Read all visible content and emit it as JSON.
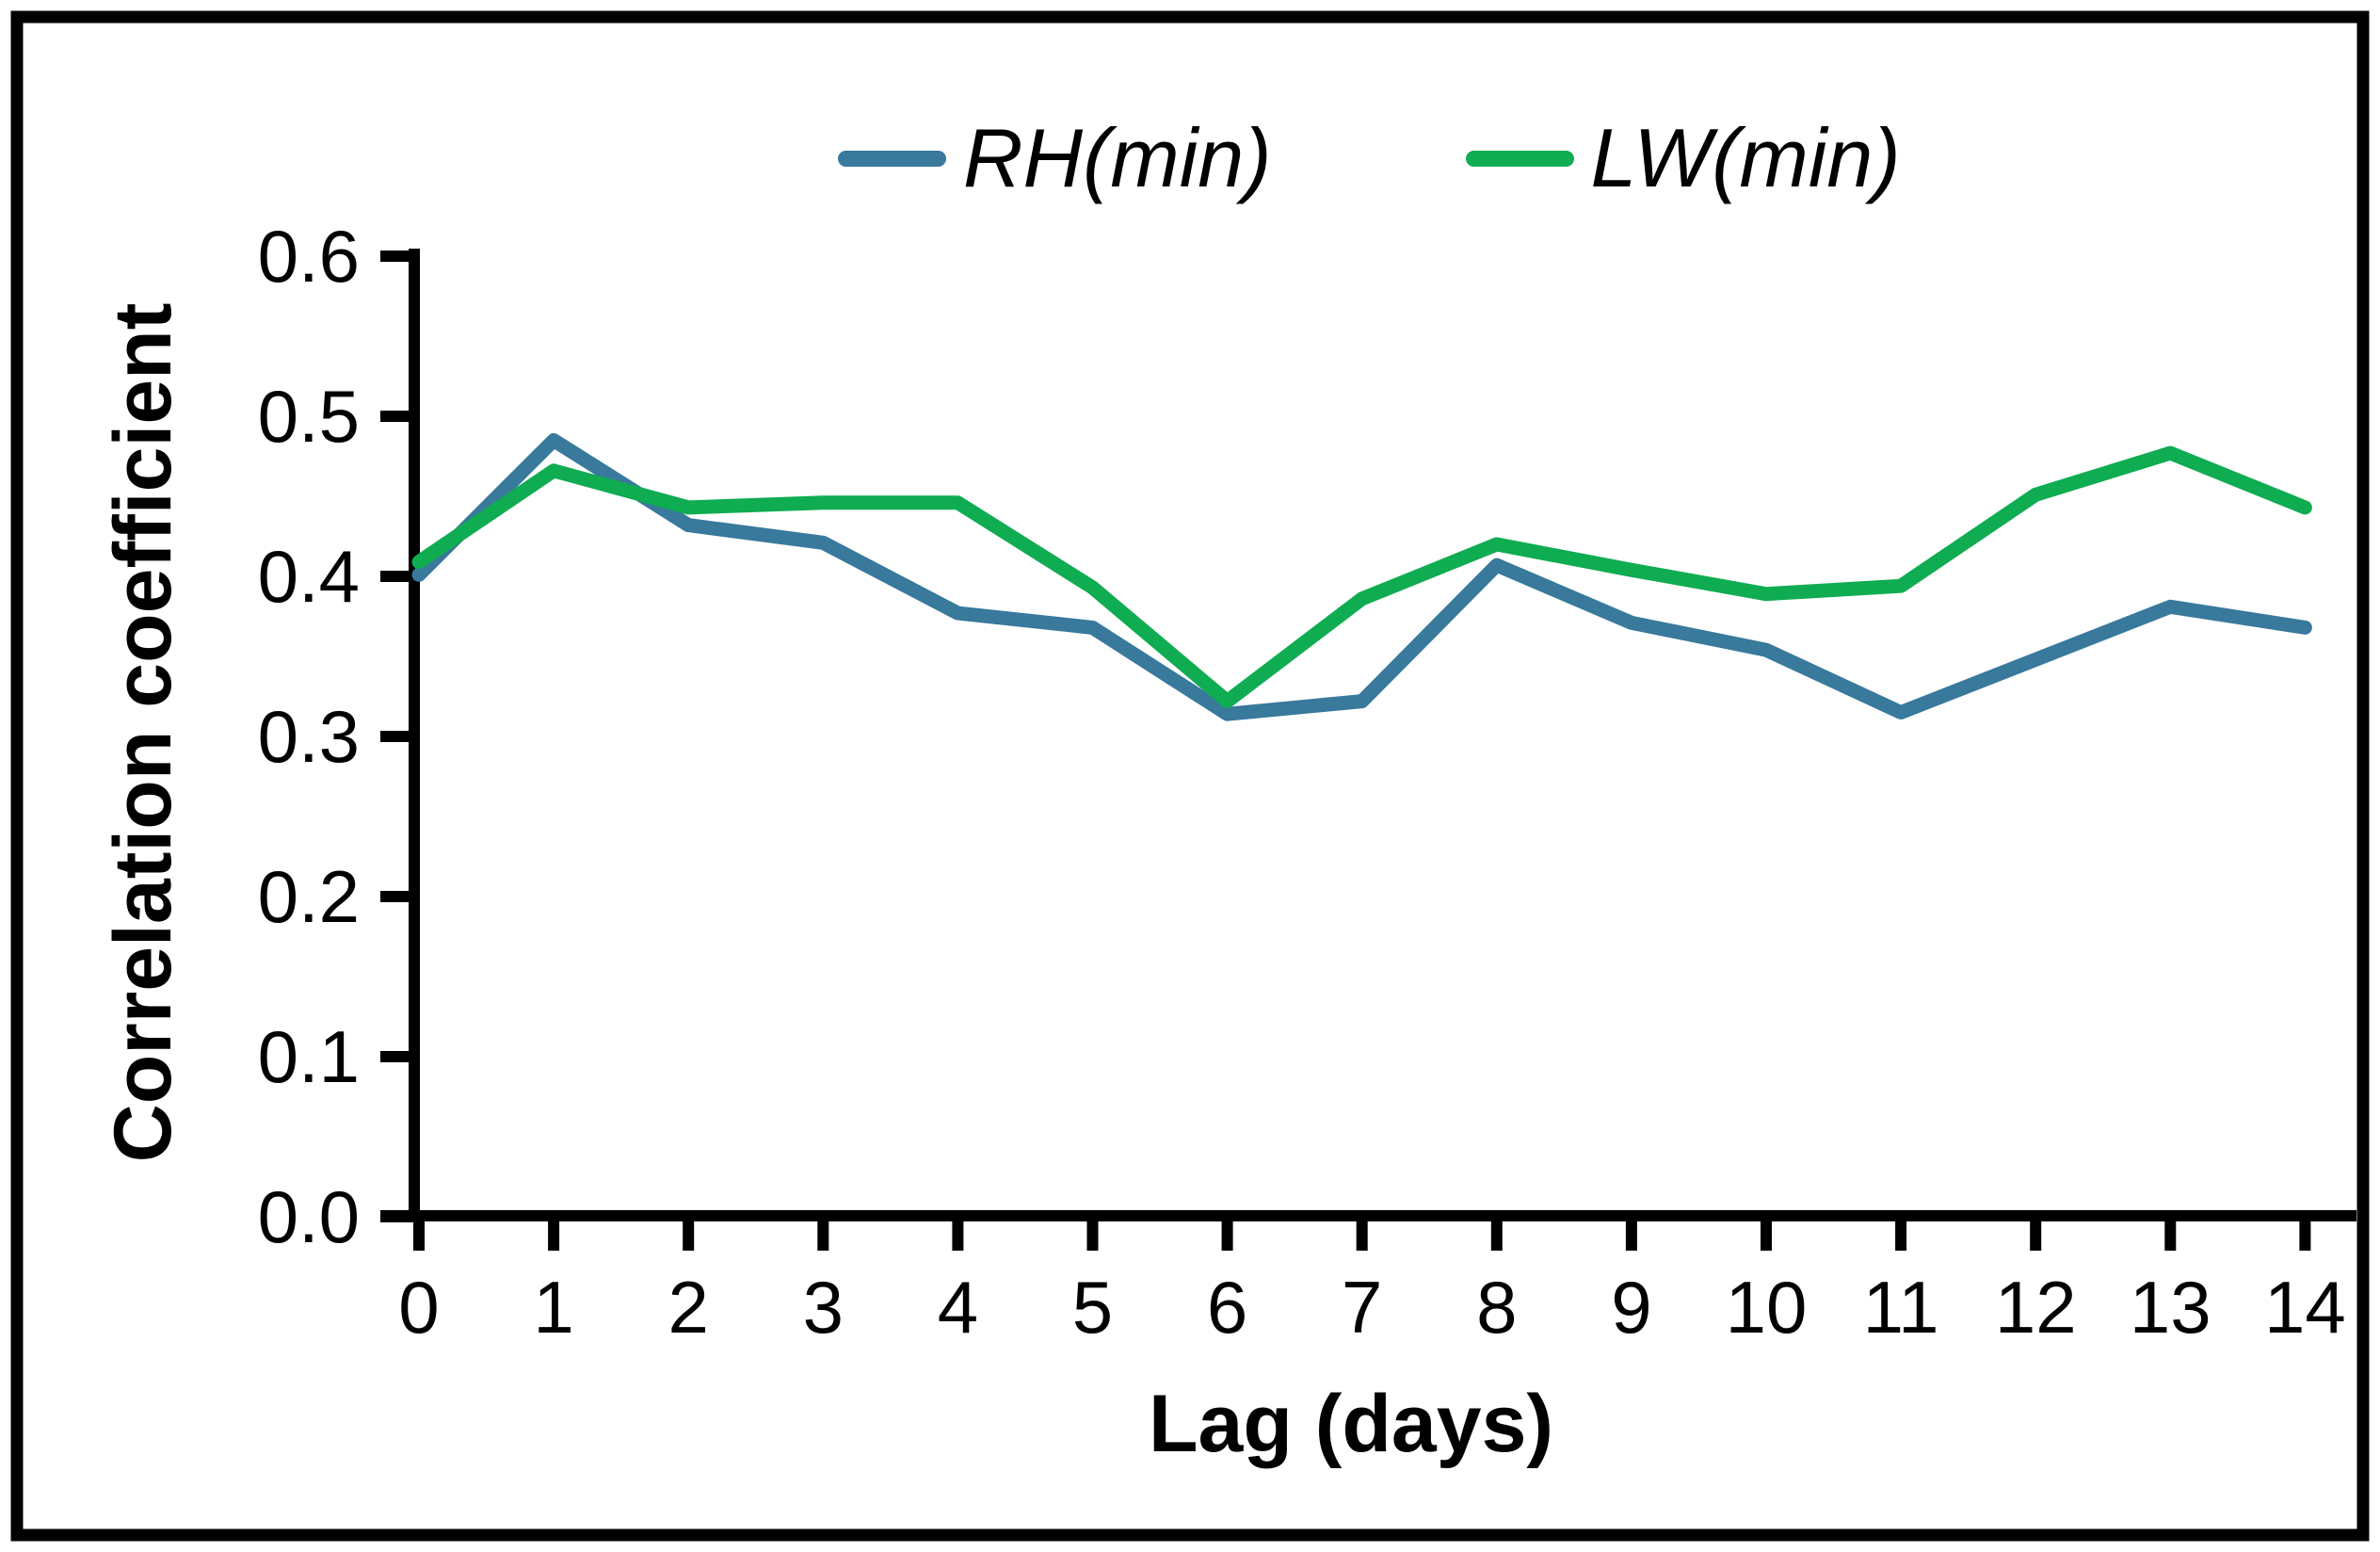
{
  "figure": {
    "background_color": "#ffffff",
    "border_color": "#000000"
  },
  "legend": {
    "position": "top-center",
    "items": [
      {
        "label": "RH(min)",
        "color": "#38799C"
      },
      {
        "label": "LW(min)",
        "color": "#0FAC51"
      }
    ]
  },
  "chart_data": {
    "type": "line",
    "title": "",
    "xlabel": "Lag (days)",
    "ylabel": "Correlation coefficient",
    "x": [
      0,
      1,
      2,
      3,
      4,
      5,
      6,
      7,
      8,
      9,
      10,
      11,
      12,
      13,
      14
    ],
    "xtick_labels": [
      "0",
      "1",
      "2",
      "3",
      "4",
      "5",
      "6",
      "7",
      "8",
      "9",
      "10",
      "11",
      "12",
      "13",
      "14"
    ],
    "ytick_labels": [
      "0.0",
      "0.1",
      "0.2",
      "0.3",
      "0.4",
      "0.5",
      "0.6"
    ],
    "yticks": [
      0.0,
      0.1,
      0.2,
      0.3,
      0.4,
      0.5,
      0.6
    ],
    "xlim": [
      0,
      14
    ],
    "ylim": [
      0.0,
      0.6
    ],
    "grid": false,
    "legend_position": "top-center",
    "series": [
      {
        "name": "RH(min)",
        "color": "#38799C",
        "values": [
          0.401,
          0.485,
          0.432,
          0.421,
          0.377,
          0.368,
          0.314,
          0.322,
          0.407,
          0.371,
          0.354,
          0.315,
          0.348,
          0.381,
          0.368
        ]
      },
      {
        "name": "LW(min)",
        "color": "#0FAC51",
        "values": [
          0.409,
          0.466,
          0.443,
          0.446,
          0.446,
          0.393,
          0.322,
          0.386,
          0.42,
          0.404,
          0.389,
          0.394,
          0.451,
          0.477,
          0.443
        ]
      }
    ]
  }
}
